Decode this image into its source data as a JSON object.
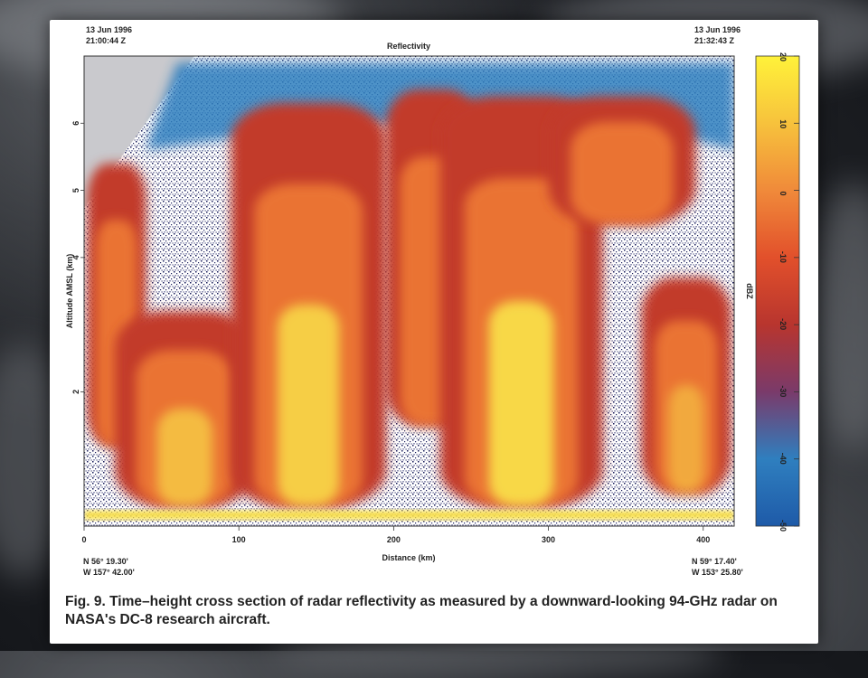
{
  "figure": {
    "top_left_date": "13 Jun 1996",
    "top_left_time": "21:00:44 Z",
    "top_right_date": "13 Jun 1996",
    "top_right_time": "21:32:43 Z",
    "bottom_left_lat": "N 56° 19.30'",
    "bottom_left_lon": "W 157° 42.00'",
    "bottom_right_lat": "N 59° 17.40'",
    "bottom_right_lon": "W 153° 25.80'",
    "caption": "Fig. 9. Time–height cross section of radar reflectivity as measured by a downward-looking 94-GHz radar on NASA's DC-8 research aircraft."
  },
  "chart_data": {
    "type": "heatmap",
    "title": "Reflectivity",
    "xlabel": "Distance (km)",
    "ylabel": "Altitude AMSL (km)",
    "xlim": [
      0,
      420
    ],
    "ylim": [
      0,
      7
    ],
    "x_ticks": [
      0,
      100,
      200,
      300,
      400
    ],
    "y_ticks": [
      2,
      4,
      5,
      6
    ],
    "colorbar": {
      "label": "dBZ",
      "range": [
        -50,
        20
      ],
      "ticks": [
        20,
        10,
        0,
        -10,
        -20,
        -30,
        -40,
        -50
      ],
      "colors": [
        "#1e5aa8",
        "#2f7fbf",
        "#7a3a6a",
        "#b8352e",
        "#e2502b",
        "#f08a3a",
        "#f7c23c",
        "#fff23a"
      ]
    },
    "colors": {
      "noise": "#1b1f5c",
      "clear": "#ffffff",
      "top_blue": "#2f7fbf",
      "low": "#c23a2a",
      "mid": "#ef7a34",
      "high": "#f9e04a"
    },
    "cells": [
      {
        "x": [
          2,
          40
        ],
        "base": 1.2,
        "top": 5.4,
        "peak_dbz": -5
      },
      {
        "x": [
          20,
          110
        ],
        "base": 0.3,
        "top": 3.2,
        "peak_dbz": 10
      },
      {
        "x": [
          95,
          195
        ],
        "base": 0.3,
        "top": 6.3,
        "peak_dbz": 15
      },
      {
        "x": [
          195,
          255
        ],
        "base": 1.5,
        "top": 6.5,
        "peak_dbz": -5
      },
      {
        "x": [
          230,
          335
        ],
        "base": 0.3,
        "top": 6.4,
        "peak_dbz": 18
      },
      {
        "x": [
          300,
          395
        ],
        "base": 4.5,
        "top": 6.4,
        "peak_dbz": -8
      },
      {
        "x": [
          360,
          418
        ],
        "base": 0.5,
        "top": 3.7,
        "peak_dbz": 5
      }
    ],
    "surface_echo_altitude_km": 0.15
  }
}
